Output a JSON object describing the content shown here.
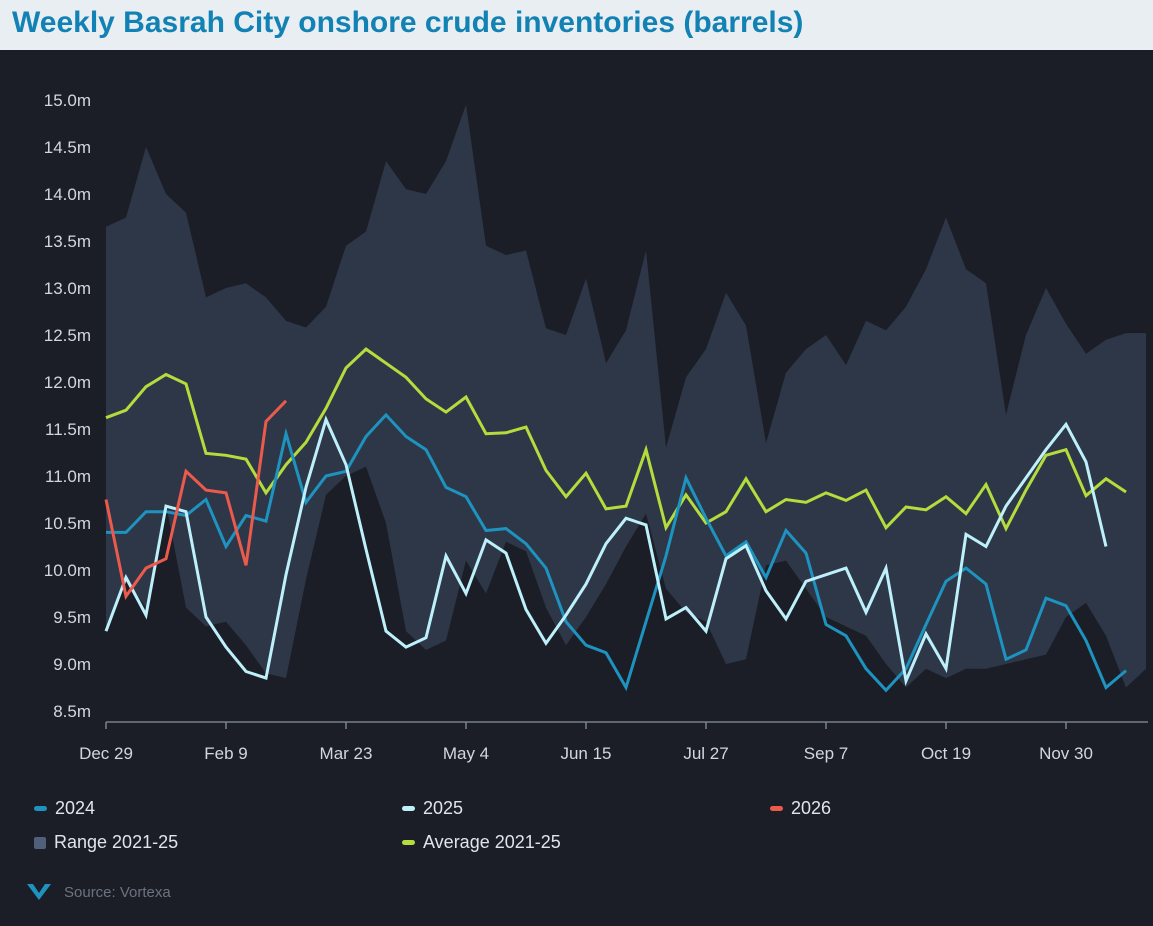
{
  "title": "Weekly Basrah City onshore crude inventories (barrels)",
  "source": "Source: Vortexa",
  "colors": {
    "2024": "#1e93bf",
    "2025": "#bdf0fb",
    "2026": "#ec5a4c",
    "range": "#2d3748",
    "range_legend": "#51607a",
    "average": "#b3dc3c",
    "background": "#1b1e26",
    "title": "#1282b4"
  },
  "legend": [
    {
      "key": "2024",
      "label": "2024",
      "type": "line"
    },
    {
      "key": "2025",
      "label": "2025",
      "type": "line"
    },
    {
      "key": "2026",
      "label": "2026",
      "type": "line"
    },
    {
      "key": "range",
      "label": "Range 2021-25",
      "type": "area"
    },
    {
      "key": "average",
      "label": "Average 2021-25",
      "type": "line"
    }
  ],
  "chart_data": {
    "type": "line",
    "title": "Weekly Basrah City onshore crude inventories (barrels)",
    "xlabel": "",
    "ylabel": "",
    "x_tick_labels": [
      "Dec 29",
      "Feb 9",
      "Mar 23",
      "May 4",
      "Jun 15",
      "Jul 27",
      "Sep 7",
      "Oct 19",
      "Nov 30"
    ],
    "y_tick_labels": [
      "8.5m",
      "9.0m",
      "9.5m",
      "10.0m",
      "10.5m",
      "11.0m",
      "11.5m",
      "12.0m",
      "12.5m",
      "13.0m",
      "13.5m",
      "14.0m",
      "14.5m",
      "15.0m"
    ],
    "ylim": [
      8.5,
      15.0
    ],
    "y_unit": "million barrels",
    "x_unit": "week of year (week 1 = Dec 29)",
    "grid": false,
    "legend_position": "bottom",
    "range_2021_25": {
      "name": "Range 2021-25",
      "weeks": [
        1,
        2,
        3,
        4,
        5,
        6,
        7,
        8,
        9,
        10,
        11,
        12,
        13,
        14,
        15,
        16,
        17,
        18,
        19,
        20,
        21,
        22,
        23,
        24,
        25,
        26,
        27,
        28,
        29,
        30,
        31,
        32,
        33,
        34,
        35,
        36,
        37,
        38,
        39,
        40,
        41,
        42,
        43,
        44,
        45,
        46,
        47,
        48,
        49,
        50,
        51,
        52,
        53
      ],
      "low": [
        9.35,
        9.9,
        9.6,
        10.7,
        9.6,
        9.4,
        9.45,
        9.2,
        8.9,
        8.85,
        9.9,
        10.8,
        11.0,
        11.1,
        10.5,
        9.35,
        9.15,
        9.25,
        10.1,
        9.75,
        10.3,
        10.2,
        9.6,
        9.2,
        9.5,
        9.85,
        10.25,
        10.6,
        9.8,
        9.55,
        9.45,
        9.0,
        9.05,
        10.05,
        10.1,
        9.8,
        9.5,
        9.4,
        9.3,
        9.0,
        8.75,
        8.95,
        8.85,
        8.95,
        8.95,
        9.0,
        9.05,
        9.1,
        9.5,
        9.65,
        9.3,
        8.75,
        8.95
      ],
      "high": [
        13.65,
        13.75,
        14.5,
        14.0,
        13.8,
        12.9,
        13.0,
        13.05,
        12.9,
        12.65,
        12.58,
        12.8,
        13.45,
        13.6,
        14.35,
        14.05,
        14.0,
        14.35,
        14.95,
        13.45,
        13.35,
        13.4,
        12.57,
        12.5,
        13.1,
        12.2,
        12.55,
        13.4,
        11.3,
        12.05,
        12.35,
        12.95,
        12.6,
        11.35,
        12.1,
        12.35,
        12.5,
        12.18,
        12.65,
        12.55,
        12.8,
        13.2,
        13.75,
        13.2,
        13.05,
        11.65,
        12.5,
        13.0,
        12.62,
        12.3,
        12.45,
        12.52,
        12.52
      ]
    },
    "series": [
      {
        "name": "2024",
        "weeks": [
          1,
          2,
          3,
          4,
          5,
          6,
          7,
          8,
          9,
          10,
          11,
          12,
          13,
          14,
          15,
          16,
          17,
          18,
          19,
          20,
          21,
          22,
          23,
          24,
          25,
          26,
          27,
          28,
          29,
          30,
          31,
          32,
          33,
          34,
          35,
          36,
          37,
          38,
          39,
          40,
          41,
          42,
          43,
          44,
          45,
          46,
          47,
          48,
          49,
          50,
          51,
          52,
          53
        ],
        "values": [
          10.4,
          10.4,
          10.62,
          10.62,
          10.58,
          10.75,
          10.25,
          10.58,
          10.52,
          11.45,
          10.72,
          11.0,
          11.05,
          11.42,
          11.65,
          11.42,
          11.28,
          10.88,
          10.78,
          10.42,
          10.44,
          10.28,
          10.02,
          9.45,
          9.2,
          9.12,
          8.75,
          9.45,
          10.15,
          10.98,
          10.55,
          10.15,
          10.3,
          9.92,
          10.42,
          10.18,
          9.42,
          9.3,
          8.95,
          8.72,
          8.95,
          9.42,
          9.88,
          10.02,
          9.85,
          9.05,
          9.15,
          9.7,
          9.62,
          9.25,
          8.75,
          8.93,
          null
        ]
      },
      {
        "name": "2025",
        "weeks": [
          1,
          2,
          3,
          4,
          5,
          6,
          7,
          8,
          9,
          10,
          11,
          12,
          13,
          14,
          15,
          16,
          17,
          18,
          19,
          20,
          21,
          22,
          23,
          24,
          25,
          26,
          27,
          28,
          29,
          30,
          31,
          32,
          33,
          34,
          35,
          36,
          37,
          38,
          39,
          40,
          41,
          42,
          43,
          44,
          45,
          46,
          47,
          48,
          49,
          50,
          51,
          52,
          53
        ],
        "values": [
          9.35,
          9.92,
          9.52,
          10.68,
          10.62,
          9.5,
          9.18,
          8.92,
          8.85,
          9.95,
          10.88,
          11.6,
          11.12,
          10.22,
          9.35,
          9.18,
          9.28,
          10.15,
          9.75,
          10.32,
          10.18,
          9.58,
          9.22,
          9.52,
          9.85,
          10.28,
          10.55,
          10.48,
          9.48,
          9.6,
          9.35,
          10.12,
          10.26,
          9.78,
          9.48,
          9.88,
          9.95,
          10.02,
          9.55,
          10.02,
          8.82,
          9.32,
          8.95,
          10.38,
          10.25,
          10.68,
          10.98,
          11.28,
          11.55,
          11.15,
          10.25,
          null,
          null
        ]
      },
      {
        "name": "2026",
        "weeks": [
          1,
          2,
          3,
          4,
          5,
          6,
          7,
          8,
          9,
          10
        ],
        "values": [
          10.75,
          9.72,
          10.02,
          10.12,
          11.05,
          10.85,
          10.82,
          10.05,
          11.58,
          11.8
        ]
      },
      {
        "name": "Average 2021-25",
        "weeks": [
          1,
          2,
          3,
          4,
          5,
          6,
          7,
          8,
          9,
          10,
          11,
          12,
          13,
          14,
          15,
          16,
          17,
          18,
          19,
          20,
          21,
          22,
          23,
          24,
          25,
          26,
          27,
          28,
          29,
          30,
          31,
          32,
          33,
          34,
          35,
          36,
          37,
          38,
          39,
          40,
          41,
          42,
          43,
          44,
          45,
          46,
          47,
          48,
          49,
          50,
          51,
          52,
          53
        ],
        "values": [
          11.62,
          11.7,
          11.95,
          12.08,
          11.98,
          11.24,
          11.22,
          11.18,
          10.82,
          11.12,
          11.36,
          11.72,
          12.15,
          12.35,
          12.2,
          12.05,
          11.82,
          11.68,
          11.84,
          11.45,
          11.46,
          11.52,
          11.06,
          10.78,
          11.03,
          10.65,
          10.68,
          11.28,
          10.45,
          10.8,
          10.5,
          10.62,
          10.97,
          10.62,
          10.75,
          10.72,
          10.82,
          10.74,
          10.85,
          10.45,
          10.67,
          10.64,
          10.78,
          10.6,
          10.91,
          10.44,
          10.85,
          11.22,
          11.28,
          10.79,
          10.97,
          10.83,
          null
        ]
      }
    ]
  }
}
